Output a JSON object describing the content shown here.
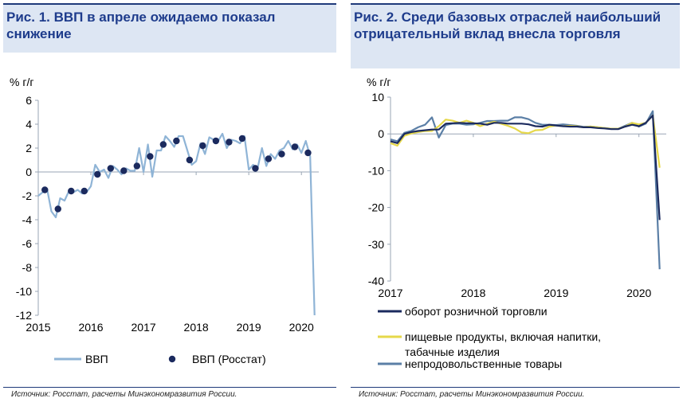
{
  "colors": {
    "navy": "#1b2a5e",
    "lightblue": "#8fb4d6",
    "yellow": "#e6d84a",
    "steel": "#5b7fa6",
    "title": "#1e3c8c",
    "header_bg": "#dde6f3"
  },
  "panels": {
    "left": {
      "title": "Рис. 1. ВВП в апреле ожидаемо показал снижение",
      "source": "Источник: Росстат, расчеты Минэкономразвития России."
    },
    "right": {
      "title": "Рис. 2. Среди базовых отраслей наибольший отрицательный вклад внесла торговля",
      "source": "Источник: Росстат, расчеты Минэкономразвития России."
    }
  },
  "chart_data": [
    {
      "type": "line",
      "ylabel": "% г/г",
      "ylim": [
        -12,
        6
      ],
      "y_ticks": [
        6,
        4,
        2,
        0,
        -2,
        -4,
        -6,
        -8,
        -10,
        -12
      ],
      "x_ticks": [
        "2015",
        "2016",
        "2017",
        "2018",
        "2019",
        "2020"
      ],
      "xlim": [
        2015.0,
        2020.33
      ],
      "series": [
        {
          "name": "ВВП",
          "kind": "line",
          "x": [
            2015.0,
            2015.083,
            2015.167,
            2015.25,
            2015.333,
            2015.417,
            2015.5,
            2015.583,
            2015.667,
            2015.75,
            2015.833,
            2015.917,
            2016.0,
            2016.083,
            2016.167,
            2016.25,
            2016.333,
            2016.417,
            2016.5,
            2016.583,
            2016.667,
            2016.75,
            2016.833,
            2016.917,
            2017.0,
            2017.083,
            2017.167,
            2017.25,
            2017.333,
            2017.417,
            2017.5,
            2017.583,
            2017.667,
            2017.75,
            2017.833,
            2017.917,
            2018.0,
            2018.083,
            2018.167,
            2018.25,
            2018.333,
            2018.417,
            2018.5,
            2018.583,
            2018.667,
            2018.75,
            2018.833,
            2018.917,
            2019.0,
            2019.083,
            2019.167,
            2019.25,
            2019.333,
            2019.417,
            2019.5,
            2019.583,
            2019.667,
            2019.75,
            2019.833,
            2019.917,
            2020.0,
            2020.083,
            2020.167,
            2020.25
          ],
          "values": [
            -2.0,
            -1.7,
            -1.4,
            -3.3,
            -3.8,
            -2.2,
            -2.4,
            -1.6,
            -1.7,
            -1.5,
            -1.8,
            -1.7,
            -1.2,
            0.6,
            0.0,
            0.2,
            -0.5,
            0.5,
            0.2,
            -0.2,
            0.3,
            0.1,
            0.1,
            2.0,
            0.0,
            2.3,
            -0.4,
            1.8,
            1.8,
            3.0,
            2.6,
            2.1,
            3.0,
            3.0,
            1.8,
            0.6,
            0.9,
            2.4,
            1.5,
            2.9,
            2.7,
            2.6,
            3.2,
            2.0,
            2.7,
            2.6,
            2.4,
            3.0,
            0.2,
            0.6,
            0.3,
            2.0,
            0.5,
            1.5,
            1.1,
            1.8,
            2.0,
            2.6,
            1.9,
            2.3,
            1.6,
            2.6,
            1.3,
            -12.0
          ]
        },
        {
          "name": "ВВП (Росстат)",
          "kind": "scatter",
          "x": [
            2015.125,
            2015.375,
            2015.625,
            2015.875,
            2016.125,
            2016.375,
            2016.625,
            2016.875,
            2017.125,
            2017.375,
            2017.625,
            2017.875,
            2018.125,
            2018.375,
            2018.625,
            2018.875,
            2019.125,
            2019.375,
            2019.625,
            2019.875,
            2020.125
          ],
          "values": [
            -1.5,
            -3.1,
            -1.6,
            -1.6,
            -0.2,
            0.3,
            0.1,
            0.5,
            1.3,
            2.3,
            2.6,
            1.0,
            2.2,
            2.6,
            2.5,
            2.8,
            0.3,
            1.1,
            1.5,
            2.1,
            1.6
          ]
        }
      ],
      "legend": [
        "ВВП",
        "ВВП (Росстат)"
      ],
      "legend_position": "bottom"
    },
    {
      "type": "line",
      "ylabel": "% г/г",
      "ylim": [
        -40,
        10
      ],
      "y_ticks": [
        10,
        0,
        -10,
        -20,
        -30,
        -40
      ],
      "x_ticks": [
        "2017",
        "2018",
        "2019",
        "2020"
      ],
      "xlim": [
        2017.0,
        2020.33
      ],
      "series": [
        {
          "name": "оборот розничной торговли",
          "color_key": "navy",
          "x": [
            2017.0,
            2017.083,
            2017.167,
            2017.25,
            2017.333,
            2017.417,
            2017.5,
            2017.583,
            2017.667,
            2017.75,
            2017.833,
            2017.917,
            2018.0,
            2018.083,
            2018.167,
            2018.25,
            2018.333,
            2018.417,
            2018.5,
            2018.583,
            2018.667,
            2018.75,
            2018.833,
            2018.917,
            2019.0,
            2019.083,
            2019.167,
            2019.25,
            2019.333,
            2019.417,
            2019.5,
            2019.583,
            2019.667,
            2019.75,
            2019.833,
            2019.917,
            2020.0,
            2020.083,
            2020.167,
            2020.25
          ],
          "values": [
            -2.0,
            -2.5,
            0.0,
            0.5,
            0.8,
            1.0,
            1.2,
            1.2,
            2.8,
            2.9,
            3.0,
            2.9,
            2.9,
            2.8,
            2.5,
            3.0,
            3.0,
            2.8,
            2.8,
            2.8,
            2.6,
            2.1,
            2.0,
            2.5,
            2.3,
            2.1,
            2.0,
            2.0,
            1.8,
            1.8,
            1.6,
            1.5,
            1.3,
            1.3,
            2.0,
            2.5,
            2.1,
            3.0,
            5.0,
            -23.4
          ]
        },
        {
          "name": "пищевые продукты, включая напитки, и табачные изделия",
          "color_key": "yellow",
          "x": [
            2017.0,
            2017.083,
            2017.167,
            2017.25,
            2017.333,
            2017.417,
            2017.5,
            2017.583,
            2017.667,
            2017.75,
            2017.833,
            2017.917,
            2018.0,
            2018.083,
            2018.167,
            2018.25,
            2018.333,
            2018.417,
            2018.5,
            2018.583,
            2018.667,
            2018.75,
            2018.833,
            2018.917,
            2019.0,
            2019.083,
            2019.167,
            2019.25,
            2019.333,
            2019.417,
            2019.5,
            2019.583,
            2019.667,
            2019.75,
            2019.833,
            2019.917,
            2020.0,
            2020.083,
            2020.167,
            2020.25
          ],
          "values": [
            -2.5,
            -3.2,
            -0.5,
            0.1,
            0.5,
            0.8,
            0.8,
            2.1,
            3.9,
            3.6,
            3.0,
            3.6,
            3.0,
            2.1,
            2.8,
            3.3,
            2.8,
            2.2,
            1.5,
            0.4,
            0.2,
            1.0,
            1.1,
            2.0,
            2.3,
            2.1,
            2.2,
            2.1,
            1.8,
            2.0,
            1.8,
            1.6,
            1.4,
            1.4,
            2.0,
            3.0,
            2.6,
            3.0,
            5.0,
            -9.2
          ]
        },
        {
          "name": "непродовольственные товары",
          "color_key": "steel",
          "x": [
            2017.0,
            2017.083,
            2017.167,
            2017.25,
            2017.333,
            2017.417,
            2017.5,
            2017.583,
            2017.667,
            2017.75,
            2017.833,
            2017.917,
            2018.0,
            2018.083,
            2018.167,
            2018.25,
            2018.333,
            2018.417,
            2018.5,
            2018.583,
            2018.667,
            2018.75,
            2018.833,
            2018.917,
            2019.0,
            2019.083,
            2019.167,
            2019.25,
            2019.333,
            2019.417,
            2019.5,
            2019.583,
            2019.667,
            2019.75,
            2019.833,
            2019.917,
            2020.0,
            2020.083,
            2020.167,
            2020.25
          ],
          "values": [
            -1.5,
            -2.0,
            0.3,
            0.8,
            1.8,
            2.5,
            4.5,
            -1.0,
            2.4,
            2.8,
            2.8,
            2.5,
            2.6,
            3.0,
            3.5,
            3.5,
            3.6,
            3.6,
            4.5,
            4.5,
            4.0,
            3.0,
            2.5,
            2.5,
            2.4,
            2.6,
            2.4,
            2.2,
            1.9,
            2.0,
            1.8,
            1.6,
            1.4,
            1.4,
            2.2,
            3.0,
            2.0,
            2.8,
            6.2,
            -36.8
          ]
        }
      ],
      "legend": [
        "оборот розничной торговли",
        "пищевые продукты, включая напитки, и табачные изделия",
        "непродовольственные товары"
      ],
      "legend_position": "bottom"
    }
  ]
}
